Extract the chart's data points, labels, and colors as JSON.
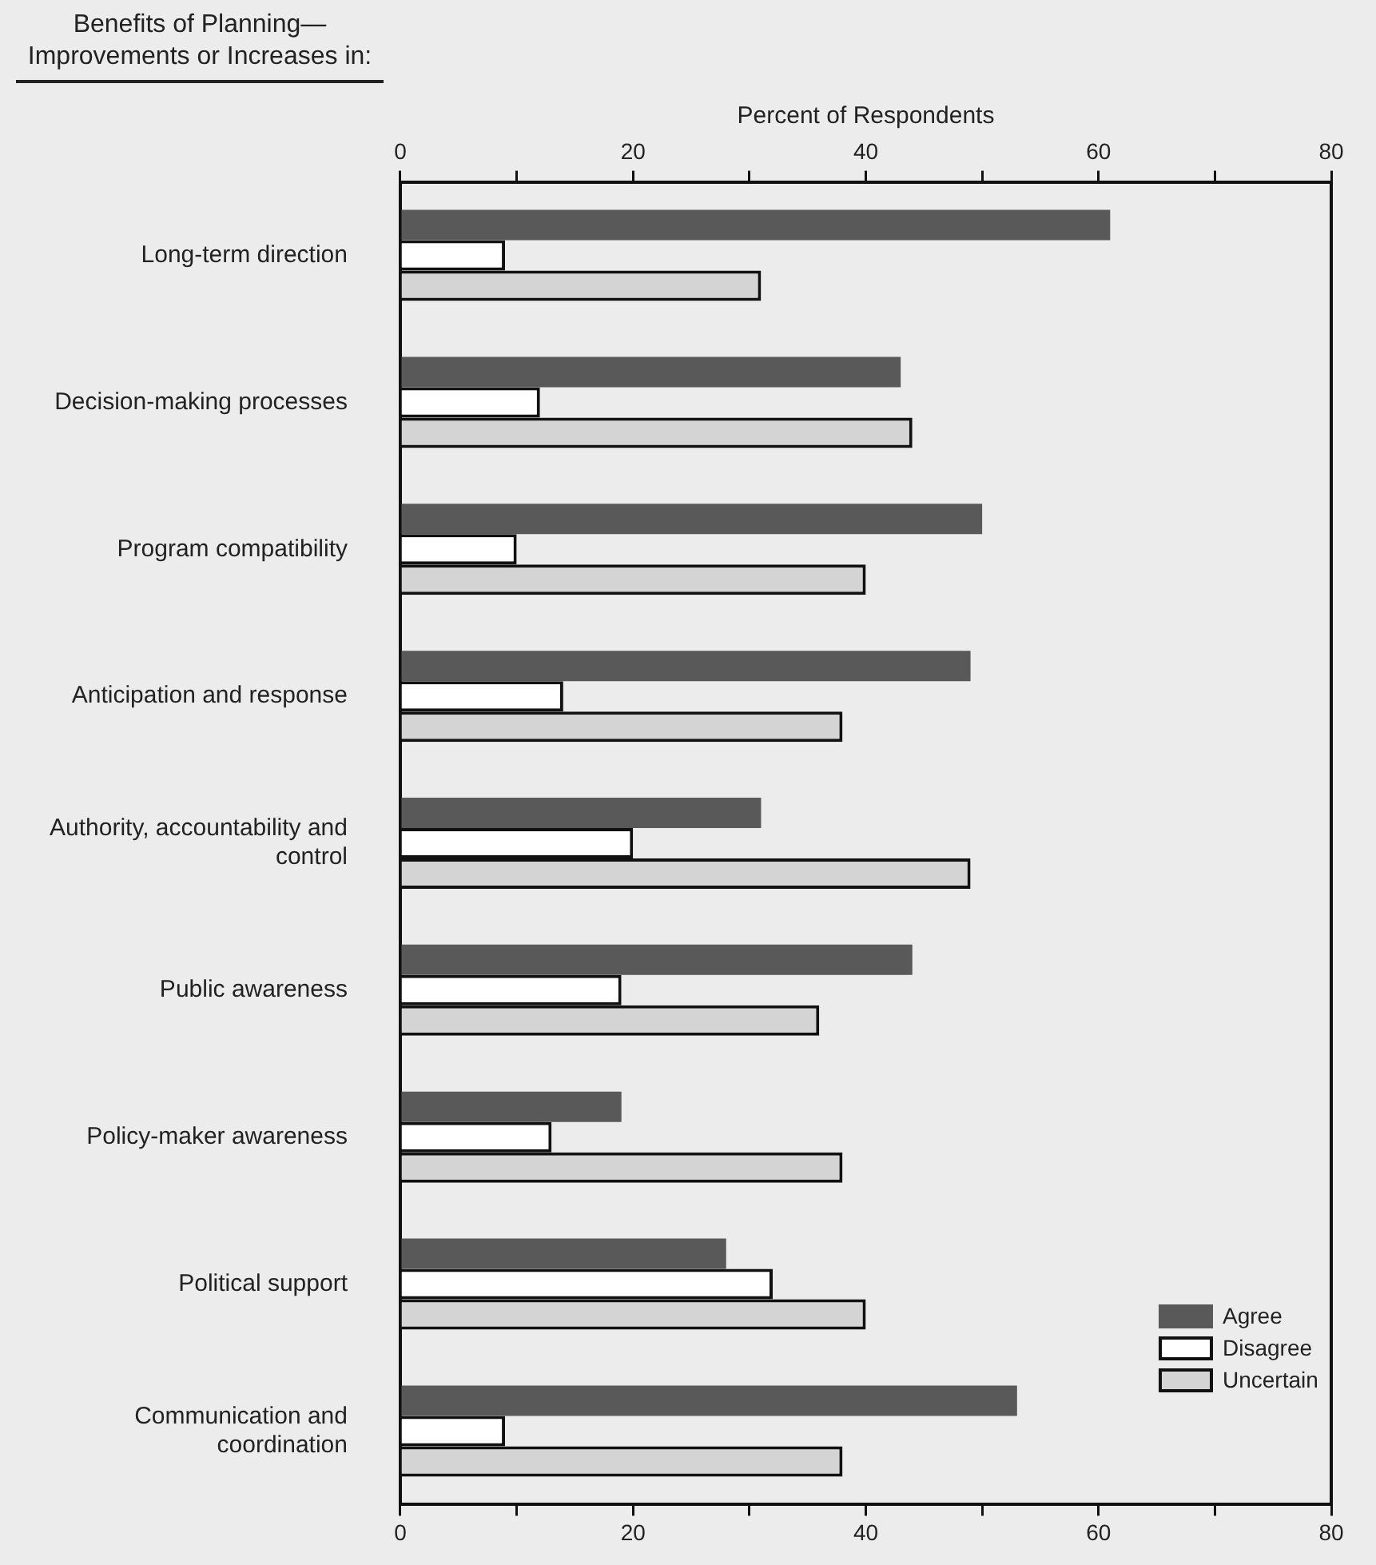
{
  "chart_data": {
    "type": "bar",
    "orientation": "horizontal",
    "ylabel": "Benefits of Planning—Improvements or Increases in:",
    "x2label": "Percent of Respondents",
    "categories": [
      "Long-term direction",
      "Decision-making processes",
      "Program compatibility",
      "Anticipation and response",
      "Authority, accountability and control",
      "Public awareness",
      "Policy-maker awareness",
      "Political support",
      "Communication and coordination"
    ],
    "series": [
      {
        "name": "Agree",
        "color": "#595959",
        "values": [
          61,
          43,
          50,
          49,
          31,
          44,
          19,
          28,
          53
        ]
      },
      {
        "name": "Disagree",
        "color": "#ffffff",
        "values": [
          9,
          12,
          10,
          14,
          20,
          19,
          13,
          32,
          9
        ]
      },
      {
        "name": "Uncertain",
        "color": "#d4d4d4",
        "values": [
          31,
          44,
          40,
          38,
          49,
          36,
          38,
          40,
          38
        ]
      }
    ],
    "xlim": [
      0,
      80
    ],
    "xticks": [
      0,
      {
        "value": 10,
        "label": null
      },
      20,
      {
        "value": 30,
        "label": null
      },
      40,
      {
        "value": 50,
        "label": null
      },
      60,
      {
        "value": 70,
        "label": null
      },
      80
    ],
    "x2lim": [
      0,
      80
    ],
    "x2ticks": [
      0,
      {
        "value": 10,
        "label": null
      },
      20,
      {
        "value": 30,
        "label": null
      },
      40,
      {
        "value": 50,
        "label": null
      },
      60,
      {
        "value": 70,
        "label": null
      },
      80
    ],
    "grid": false,
    "legend": "bottom right"
  }
}
